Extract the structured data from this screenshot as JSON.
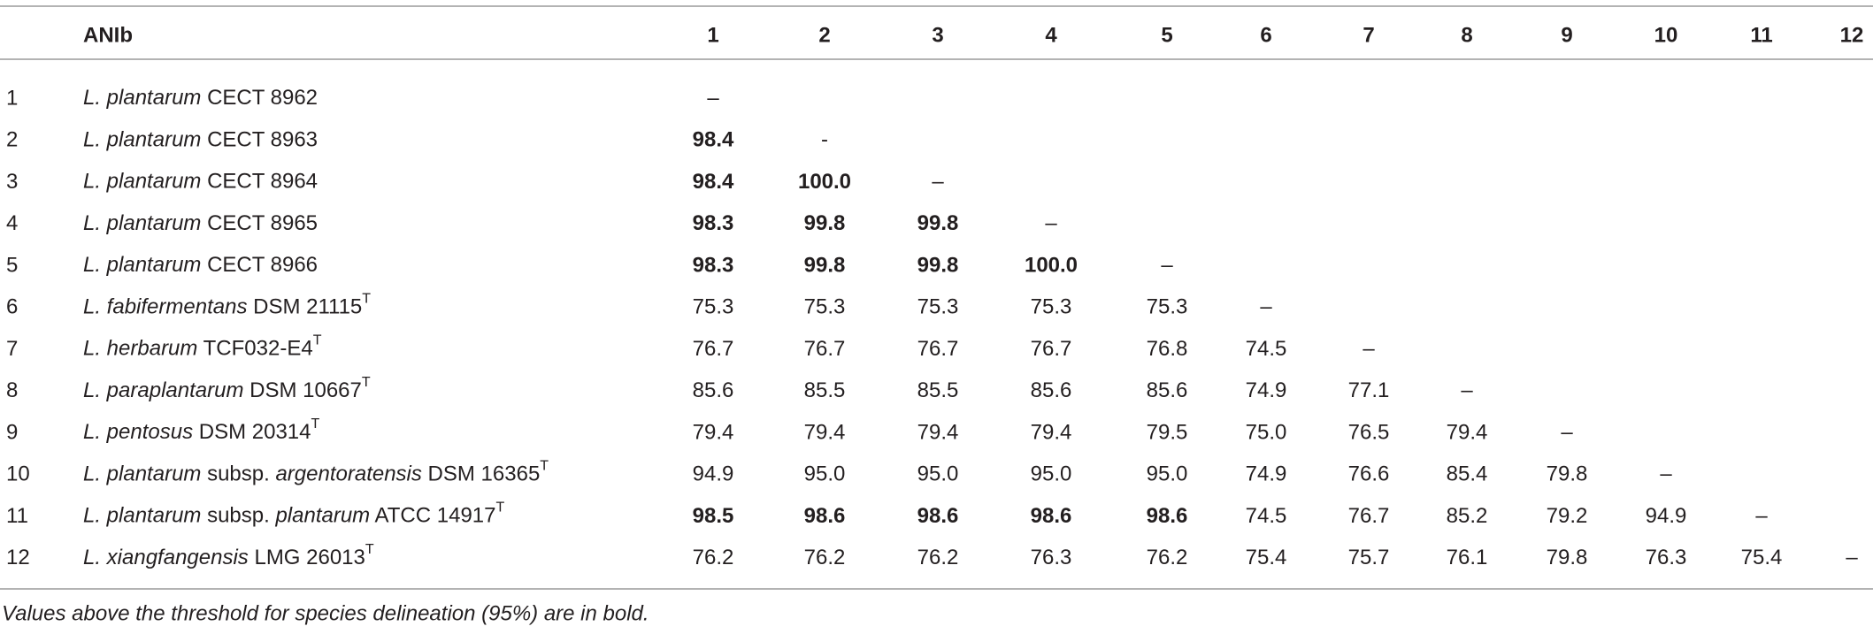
{
  "table": {
    "header": {
      "name": "ANIb",
      "columns": [
        "1",
        "2",
        "3",
        "4",
        "5",
        "6",
        "7",
        "8",
        "9",
        "10",
        "11",
        "12"
      ]
    },
    "rows": [
      {
        "id": "1",
        "name": [
          {
            "text": "L. plantarum",
            "italic": true
          },
          {
            "text": " CECT 8962"
          }
        ],
        "values": [
          "–"
        ],
        "bold": [
          false
        ]
      },
      {
        "id": "2",
        "name": [
          {
            "text": "L. plantarum",
            "italic": true
          },
          {
            "text": " CECT 8963"
          }
        ],
        "values": [
          "98.4",
          "-"
        ],
        "bold": [
          true,
          false
        ]
      },
      {
        "id": "3",
        "name": [
          {
            "text": "L. plantarum",
            "italic": true
          },
          {
            "text": " CECT 8964"
          }
        ],
        "values": [
          "98.4",
          "100.0",
          "–"
        ],
        "bold": [
          true,
          true,
          false
        ]
      },
      {
        "id": "4",
        "name": [
          {
            "text": "L. plantarum",
            "italic": true
          },
          {
            "text": " CECT 8965"
          }
        ],
        "values": [
          "98.3",
          "99.8",
          "99.8",
          "–"
        ],
        "bold": [
          true,
          true,
          true,
          false
        ]
      },
      {
        "id": "5",
        "name": [
          {
            "text": "L. plantarum",
            "italic": true
          },
          {
            "text": " CECT 8966"
          }
        ],
        "values": [
          "98.3",
          "99.8",
          "99.8",
          "100.0",
          "–"
        ],
        "bold": [
          true,
          true,
          true,
          true,
          false
        ]
      },
      {
        "id": "6",
        "name": [
          {
            "text": "L. fabifermentans",
            "italic": true
          },
          {
            "text": " DSM 21115"
          }
        ],
        "type_strain": "T",
        "values": [
          "75.3",
          "75.3",
          "75.3",
          "75.3",
          "75.3",
          "–"
        ],
        "bold": [
          false,
          false,
          false,
          false,
          false,
          false
        ]
      },
      {
        "id": "7",
        "name": [
          {
            "text": "L. herbarum",
            "italic": true
          },
          {
            "text": " TCF032-E4"
          }
        ],
        "type_strain": "T",
        "values": [
          "76.7",
          "76.7",
          "76.7",
          "76.7",
          "76.8",
          "74.5",
          "–"
        ],
        "bold": [
          false,
          false,
          false,
          false,
          false,
          false,
          false
        ]
      },
      {
        "id": "8",
        "name": [
          {
            "text": "L. paraplantarum",
            "italic": true
          },
          {
            "text": " DSM 10667"
          }
        ],
        "type_strain": "T",
        "values": [
          "85.6",
          "85.5",
          "85.5",
          "85.6",
          "85.6",
          "74.9",
          "77.1",
          "–"
        ],
        "bold": [
          false,
          false,
          false,
          false,
          false,
          false,
          false,
          false
        ]
      },
      {
        "id": "9",
        "name": [
          {
            "text": "L. pentosus",
            "italic": true
          },
          {
            "text": " DSM 20314"
          }
        ],
        "type_strain": "T",
        "values": [
          "79.4",
          "79.4",
          "79.4",
          "79.4",
          "79.5",
          "75.0",
          "76.5",
          "79.4",
          "–"
        ],
        "bold": [
          false,
          false,
          false,
          false,
          false,
          false,
          false,
          false,
          false
        ]
      },
      {
        "id": "10",
        "name": [
          {
            "text": "L. plantarum",
            "italic": true
          },
          {
            "text": " subsp. "
          },
          {
            "text": "argentoratensis",
            "italic": true
          },
          {
            "text": " DSM 16365"
          }
        ],
        "type_strain": "T",
        "values": [
          "94.9",
          "95.0",
          "95.0",
          "95.0",
          "95.0",
          "74.9",
          "76.6",
          "85.4",
          "79.8",
          "–"
        ],
        "bold": [
          false,
          false,
          false,
          false,
          false,
          false,
          false,
          false,
          false,
          false
        ]
      },
      {
        "id": "11",
        "name": [
          {
            "text": "L. plantarum",
            "italic": true
          },
          {
            "text": " subsp. "
          },
          {
            "text": "plantarum",
            "italic": true
          },
          {
            "text": " ATCC 14917"
          }
        ],
        "type_strain": "T",
        "values": [
          "98.5",
          "98.6",
          "98.6",
          "98.6",
          "98.6",
          "74.5",
          "76.7",
          "85.2",
          "79.2",
          "94.9",
          "–"
        ],
        "bold": [
          true,
          true,
          true,
          true,
          true,
          false,
          false,
          false,
          false,
          false,
          false
        ]
      },
      {
        "id": "12",
        "name": [
          {
            "text": "L. xiangfangensis",
            "italic": true
          },
          {
            "text": " LMG 26013"
          }
        ],
        "type_strain": "T",
        "values": [
          "76.2",
          "76.2",
          "76.2",
          "76.3",
          "76.2",
          "75.4",
          "75.7",
          "76.1",
          "79.8",
          "76.3",
          "75.4",
          "–"
        ],
        "bold": [
          false,
          false,
          false,
          false,
          false,
          false,
          false,
          false,
          false,
          false,
          false,
          false
        ]
      }
    ],
    "footnote": "Values above the threshold for species delineation (95%) are in bold."
  }
}
